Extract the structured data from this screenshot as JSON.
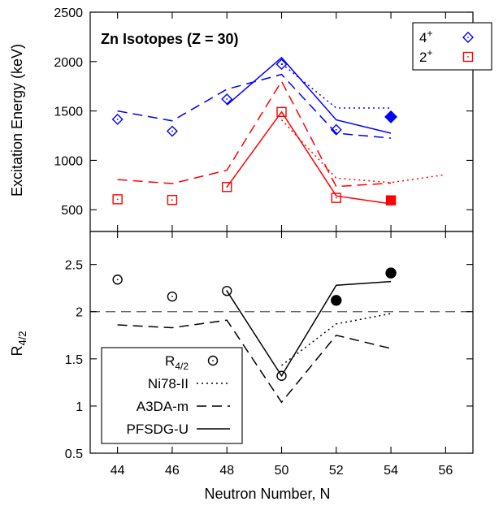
{
  "chart_data": [
    {
      "type": "line",
      "annotation": "Zn Isotopes (Z = 30)",
      "ylabel": "Excitation Energy (keV)",
      "xlabel": "",
      "xlim": [
        43,
        57
      ],
      "ylim": [
        280,
        2500
      ],
      "xticks": [
        44,
        46,
        48,
        50,
        52,
        54,
        56
      ],
      "yticks": [
        500,
        1000,
        1500,
        2000,
        2500
      ],
      "legend": {
        "placement": "top-right",
        "entries": [
          {
            "base": "4",
            "sup": "+",
            "color": "#0000ff",
            "marker": "diamond"
          },
          {
            "base": "2",
            "sup": "+",
            "color": "#ff0000",
            "marker": "square"
          }
        ]
      },
      "series": [
        {
          "state": "4+",
          "kind": "experiment",
          "color": "#0000ff",
          "marker": "diamond-open",
          "x": [
            44,
            46,
            48,
            50,
            52
          ],
          "y": [
            1416,
            1295,
            1620,
            1973,
            1310
          ]
        },
        {
          "state": "4+",
          "kind": "experiment",
          "color": "#0000ff",
          "marker": "diamond-filled",
          "x": [
            54
          ],
          "y": [
            1440
          ]
        },
        {
          "state": "4+",
          "kind": "Ni78-II",
          "color": "#0000ff",
          "dash": "dotted",
          "x": [
            50,
            52,
            54
          ],
          "y": [
            1980,
            1530,
            1530
          ]
        },
        {
          "state": "4+",
          "kind": "A3DA-m",
          "color": "#0000ff",
          "dash": "dashed",
          "x": [
            44,
            46,
            48,
            50,
            52,
            54
          ],
          "y": [
            1500,
            1400,
            1720,
            1870,
            1275,
            1225
          ]
        },
        {
          "state": "4+",
          "kind": "PFSDG-U",
          "color": "#0000ff",
          "dash": "solid",
          "x": [
            48,
            50,
            52,
            54
          ],
          "y": [
            1560,
            2040,
            1410,
            1275
          ]
        },
        {
          "state": "2+",
          "kind": "experiment",
          "color": "#ff0000",
          "marker": "square-open",
          "x": [
            44,
            46,
            48,
            50,
            52
          ],
          "y": [
            606,
            599,
            730,
            1490,
            620
          ]
        },
        {
          "state": "2+",
          "kind": "experiment",
          "color": "#ff0000",
          "marker": "square-filled",
          "x": [
            54
          ],
          "y": [
            595
          ]
        },
        {
          "state": "2+",
          "kind": "Ni78-II",
          "color": "#ff0000",
          "dash": "dotted",
          "x": [
            50,
            52,
            54,
            56
          ],
          "y": [
            1410,
            820,
            775,
            855
          ]
        },
        {
          "state": "2+",
          "kind": "A3DA-m",
          "color": "#ff0000",
          "dash": "dashed",
          "x": [
            44,
            46,
            48,
            50,
            52,
            54
          ],
          "y": [
            805,
            765,
            900,
            1800,
            735,
            770
          ]
        },
        {
          "state": "2+",
          "kind": "PFSDG-U",
          "color": "#ff0000",
          "dash": "solid",
          "x": [
            48,
            50,
            52,
            54
          ],
          "y": [
            730,
            1490,
            640,
            560
          ]
        }
      ]
    },
    {
      "type": "line",
      "ylabel_base": "R",
      "ylabel_sub": "4/2",
      "xlabel": "Neutron Number, N",
      "xlim": [
        43,
        57
      ],
      "ylim": [
        0.5,
        2.85
      ],
      "xticks": [
        44,
        46,
        48,
        50,
        52,
        54,
        56
      ],
      "yticks": [
        0.5,
        1,
        1.5,
        2,
        2.5
      ],
      "reference_line": 2.0,
      "legend": {
        "placement": "bottom-left",
        "entries": [
          {
            "base": "R",
            "sub": "4/2",
            "style": "open-circle"
          },
          {
            "label": "Ni78-II",
            "style": "dotted"
          },
          {
            "label": "A3DA-m",
            "style": "dashed"
          },
          {
            "label": "PFSDG-U",
            "style": "solid"
          }
        ]
      },
      "series": [
        {
          "name": "R4/2",
          "marker": "circle-open",
          "x": [
            44,
            46,
            48,
            50
          ],
          "y": [
            2.34,
            2.16,
            2.22,
            1.32
          ]
        },
        {
          "name": "R4/2",
          "marker": "circle-filled",
          "x": [
            52,
            54
          ],
          "y": [
            2.12,
            2.41
          ]
        },
        {
          "name": "Ni78-II",
          "dash": "dotted",
          "x": [
            50,
            52,
            54
          ],
          "y": [
            1.43,
            1.87,
            1.98
          ]
        },
        {
          "name": "A3DA-m",
          "dash": "dashed",
          "x": [
            44,
            46,
            48,
            50,
            52,
            54
          ],
          "y": [
            1.86,
            1.83,
            1.91,
            1.04,
            1.75,
            1.61
          ]
        },
        {
          "name": "PFSDG-U",
          "dash": "solid",
          "x": [
            48,
            50,
            52,
            54
          ],
          "y": [
            2.22,
            1.32,
            2.28,
            2.32
          ]
        }
      ]
    }
  ]
}
